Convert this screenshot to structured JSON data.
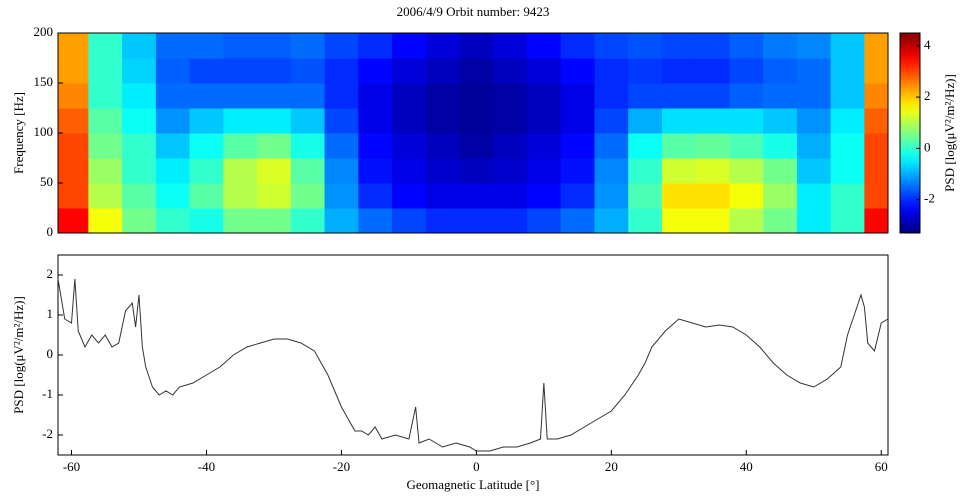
{
  "chart_data": [
    {
      "type": "heatmap",
      "title": "2006/4/9  Orbit number: 9423",
      "ylabel": "Frequency [Hz]",
      "colorbar_label": "PSD [log(μV²/m²/Hz)]",
      "x": [
        -60,
        -55,
        -50,
        -45,
        -40,
        -35,
        -30,
        -25,
        -20,
        -15,
        -10,
        -5,
        0,
        5,
        10,
        15,
        20,
        25,
        30,
        35,
        40,
        45,
        50,
        55,
        60
      ],
      "y": [
        12.5,
        37.5,
        62.5,
        87.5,
        112.5,
        137.5,
        162.5,
        187.5
      ],
      "z": [
        [
          3.5,
          1.5,
          0.5,
          0,
          -0.2,
          0.5,
          0.5,
          0,
          -1,
          -1.5,
          -1.8,
          -2,
          -2,
          -2,
          -1.8,
          -1.5,
          -1,
          0,
          1.5,
          1.5,
          1,
          0.5,
          -0.5,
          0,
          3.5
        ],
        [
          3,
          1,
          0.3,
          -0.3,
          0.3,
          1,
          1.2,
          0.5,
          -1.2,
          -2,
          -2.3,
          -2.5,
          -2.5,
          -2.5,
          -2.3,
          -2,
          -1.2,
          0.2,
          1.8,
          1.8,
          1.5,
          0.8,
          -0.5,
          0,
          3
        ],
        [
          3,
          0.8,
          0,
          -0.5,
          0,
          1,
          1.3,
          0.3,
          -1.3,
          -2.2,
          -2.5,
          -2.7,
          -2.8,
          -2.7,
          -2.5,
          -2.2,
          -1.3,
          0,
          1.2,
          1.3,
          1,
          0.5,
          -0.8,
          -0.3,
          3
        ],
        [
          3,
          0.5,
          0,
          -0.8,
          -0.3,
          0.3,
          0.5,
          -0.2,
          -1.5,
          -2.3,
          -2.6,
          -2.8,
          -3,
          -2.8,
          -2.6,
          -2.3,
          -1.5,
          -0.3,
          0.3,
          0.4,
          0.2,
          -0.2,
          -1,
          -0.3,
          3
        ],
        [
          2.8,
          0.3,
          -0.3,
          -1.2,
          -0.8,
          -0.5,
          -0.5,
          -0.8,
          -1.8,
          -2.5,
          -2.8,
          -3,
          -3.1,
          -3,
          -2.8,
          -2.5,
          -1.8,
          -1,
          -0.6,
          -0.6,
          -0.6,
          -0.8,
          -1.2,
          -0.5,
          2.8
        ],
        [
          2.5,
          0,
          -0.5,
          -1.5,
          -1.5,
          -1.5,
          -1.5,
          -1.5,
          -2,
          -2.5,
          -2.8,
          -3,
          -3.1,
          -3,
          -2.8,
          -2.5,
          -2,
          -1.8,
          -1.8,
          -1.8,
          -1.6,
          -1.5,
          -1.5,
          -0.8,
          2.5
        ],
        [
          2.3,
          0,
          -0.7,
          -1.6,
          -1.8,
          -1.8,
          -1.8,
          -1.7,
          -2,
          -2.3,
          -2.6,
          -2.8,
          -3,
          -2.8,
          -2.6,
          -2.3,
          -2,
          -1.9,
          -2,
          -2,
          -1.8,
          -1.6,
          -1.5,
          -0.8,
          2.3
        ],
        [
          2.3,
          0,
          -0.8,
          -1.5,
          -1.5,
          -1.6,
          -1.6,
          -1.5,
          -1.8,
          -2,
          -2.3,
          -2.6,
          -2.8,
          -2.6,
          -2.3,
          -2,
          -1.8,
          -1.7,
          -1.8,
          -1.8,
          -1.6,
          -1.4,
          -1.3,
          -0.8,
          2.3
        ]
      ],
      "xlim": [
        -62,
        61
      ],
      "ylim": [
        0,
        200
      ],
      "yticks": [
        0,
        50,
        100,
        150,
        200
      ],
      "clim": [
        -3.3,
        4.5
      ],
      "cticks": [
        -2,
        0,
        2,
        4
      ],
      "colormap": "jet"
    },
    {
      "type": "line",
      "xlabel": "Geomagnetic Latitude [°]",
      "ylabel": "PSD [log(μV²/m²/Hz)]",
      "color": "#333333",
      "x": [
        -62,
        -61,
        -60,
        -59.5,
        -59,
        -58,
        -57,
        -56,
        -55,
        -54,
        -53,
        -52,
        -51,
        -50.5,
        -50,
        -49.5,
        -49,
        -48,
        -47,
        -46,
        -45,
        -44,
        -42,
        -40,
        -38,
        -36,
        -34,
        -32,
        -30,
        -28,
        -26,
        -24,
        -22,
        -21,
        -20,
        -19,
        -18,
        -17,
        -16,
        -15,
        -14,
        -12,
        -10,
        -9,
        -8.5,
        -7,
        -5,
        -3,
        -1,
        0,
        2,
        4,
        6,
        8,
        9.5,
        10,
        10.5,
        12,
        14,
        16,
        18,
        20,
        22,
        24,
        25,
        26,
        28,
        30,
        32,
        34,
        36,
        38,
        40,
        42,
        44,
        46,
        48,
        50,
        52,
        54,
        55,
        56,
        57,
        57.5,
        58,
        59,
        60,
        61
      ],
      "values": [
        1.9,
        0.9,
        0.8,
        1.9,
        0.6,
        0.2,
        0.5,
        0.3,
        0.5,
        0.2,
        0.3,
        1.1,
        1.3,
        0.7,
        1.5,
        0.2,
        -0.3,
        -0.8,
        -1,
        -0.9,
        -1,
        -0.8,
        -0.7,
        -0.5,
        -0.3,
        0,
        0.2,
        0.3,
        0.4,
        0.4,
        0.3,
        0.1,
        -0.5,
        -0.9,
        -1.3,
        -1.6,
        -1.9,
        -1.9,
        -2.0,
        -1.8,
        -2.1,
        -2.0,
        -2.1,
        -1.3,
        -2.2,
        -2.1,
        -2.3,
        -2.2,
        -2.3,
        -2.4,
        -2.4,
        -2.3,
        -2.3,
        -2.2,
        -2.1,
        -0.7,
        -2.1,
        -2.1,
        -2.0,
        -1.8,
        -1.6,
        -1.4,
        -1.0,
        -0.5,
        -0.2,
        0.2,
        0.6,
        0.9,
        0.8,
        0.7,
        0.75,
        0.7,
        0.5,
        0.2,
        -0.2,
        -0.5,
        -0.7,
        -0.8,
        -0.6,
        -0.3,
        0.5,
        1.0,
        1.5,
        1.2,
        0.3,
        0.1,
        0.8,
        0.9
      ],
      "xlim": [
        -62,
        61
      ],
      "ylim": [
        -2.5,
        2.5
      ],
      "xticks": [
        -60,
        -40,
        -20,
        0,
        20,
        40,
        60
      ],
      "yticks": [
        -2,
        -1,
        0,
        1,
        2
      ]
    }
  ]
}
